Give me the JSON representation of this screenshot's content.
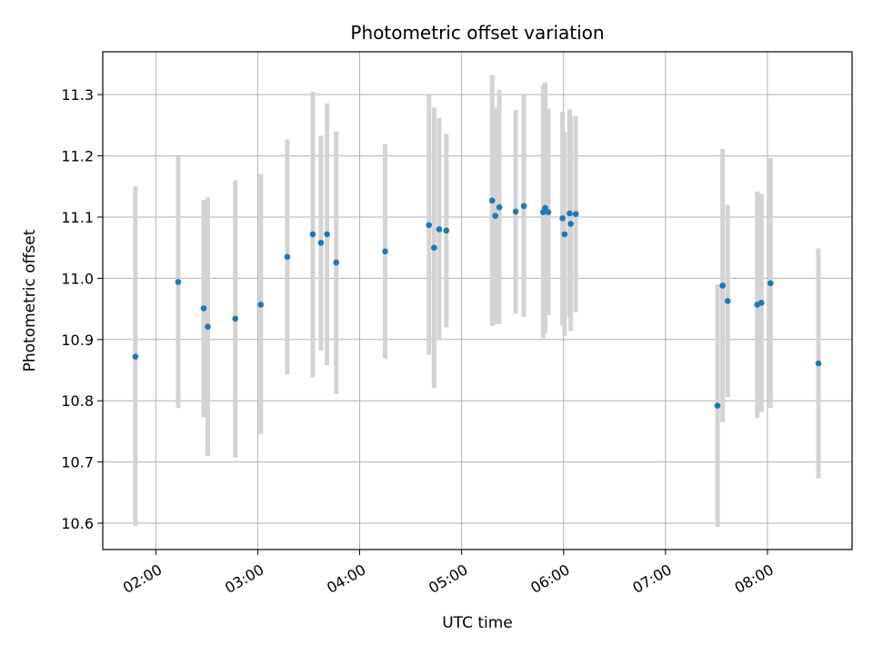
{
  "chart_data": {
    "type": "scatter",
    "title": "Photometric offset variation",
    "xlabel": "UTC time",
    "ylabel": "Photometric offset",
    "grid": true,
    "x_unit": "hours UTC",
    "xlim": [
      1.48,
      8.83
    ],
    "ylim": [
      10.557,
      11.37
    ],
    "x_ticks": [
      {
        "value": 2,
        "label": "02:00"
      },
      {
        "value": 3,
        "label": "03:00"
      },
      {
        "value": 4,
        "label": "04:00"
      },
      {
        "value": 5,
        "label": "05:00"
      },
      {
        "value": 6,
        "label": "06:00"
      },
      {
        "value": 7,
        "label": "07:00"
      },
      {
        "value": 8,
        "label": "08:00"
      }
    ],
    "y_ticks": [
      {
        "value": 10.6,
        "label": "10.6"
      },
      {
        "value": 10.7,
        "label": "10.7"
      },
      {
        "value": 10.8,
        "label": "10.8"
      },
      {
        "value": 10.9,
        "label": "10.9"
      },
      {
        "value": 11.0,
        "label": "11.0"
      },
      {
        "value": 11.1,
        "label": "11.1"
      },
      {
        "value": 11.2,
        "label": "11.2"
      },
      {
        "value": 11.3,
        "label": "11.3"
      }
    ],
    "colors": {
      "point": "#1f77b4",
      "errorbar": "#d3d3d3",
      "grid": "#b0b0b0"
    },
    "points": [
      {
        "x": 1.8,
        "y": 10.872,
        "lo": 10.595,
        "hi": 11.15
      },
      {
        "x": 2.22,
        "y": 10.994,
        "lo": 10.788,
        "hi": 11.2
      },
      {
        "x": 2.47,
        "y": 10.951,
        "lo": 10.773,
        "hi": 11.128
      },
      {
        "x": 2.51,
        "y": 10.921,
        "lo": 10.71,
        "hi": 11.132
      },
      {
        "x": 2.78,
        "y": 10.934,
        "lo": 10.707,
        "hi": 11.16
      },
      {
        "x": 3.03,
        "y": 10.957,
        "lo": 10.745,
        "hi": 11.17
      },
      {
        "x": 3.29,
        "y": 11.035,
        "lo": 10.843,
        "hi": 11.227
      },
      {
        "x": 3.54,
        "y": 11.072,
        "lo": 10.838,
        "hi": 11.305
      },
      {
        "x": 3.62,
        "y": 11.058,
        "lo": 10.882,
        "hi": 11.233
      },
      {
        "x": 3.68,
        "y": 11.072,
        "lo": 10.858,
        "hi": 11.286
      },
      {
        "x": 3.77,
        "y": 11.026,
        "lo": 10.811,
        "hi": 11.24
      },
      {
        "x": 4.25,
        "y": 11.044,
        "lo": 10.869,
        "hi": 11.219
      },
      {
        "x": 4.68,
        "y": 11.087,
        "lo": 10.875,
        "hi": 11.3
      },
      {
        "x": 4.73,
        "y": 11.05,
        "lo": 10.821,
        "hi": 11.279
      },
      {
        "x": 4.78,
        "y": 11.08,
        "lo": 10.899,
        "hi": 11.262
      },
      {
        "x": 4.85,
        "y": 11.078,
        "lo": 10.92,
        "hi": 11.236
      },
      {
        "x": 5.3,
        "y": 11.127,
        "lo": 10.922,
        "hi": 11.332
      },
      {
        "x": 5.33,
        "y": 11.102,
        "lo": 10.925,
        "hi": 11.279
      },
      {
        "x": 5.37,
        "y": 11.116,
        "lo": 10.925,
        "hi": 11.308
      },
      {
        "x": 5.53,
        "y": 11.109,
        "lo": 10.942,
        "hi": 11.275
      },
      {
        "x": 5.61,
        "y": 11.118,
        "lo": 10.937,
        "hi": 11.3
      },
      {
        "x": 5.8,
        "y": 11.108,
        "lo": 10.902,
        "hi": 11.315
      },
      {
        "x": 5.82,
        "y": 11.115,
        "lo": 10.91,
        "hi": 11.32
      },
      {
        "x": 5.85,
        "y": 11.108,
        "lo": 10.94,
        "hi": 11.277
      },
      {
        "x": 5.99,
        "y": 11.098,
        "lo": 10.923,
        "hi": 11.272
      },
      {
        "x": 6.01,
        "y": 11.072,
        "lo": 10.906,
        "hi": 11.239
      },
      {
        "x": 6.06,
        "y": 11.106,
        "lo": 10.936,
        "hi": 11.276
      },
      {
        "x": 6.07,
        "y": 11.089,
        "lo": 10.914,
        "hi": 11.264
      },
      {
        "x": 6.12,
        "y": 11.105,
        "lo": 10.945,
        "hi": 11.265
      },
      {
        "x": 7.51,
        "y": 10.792,
        "lo": 10.594,
        "hi": 10.99
      },
      {
        "x": 7.56,
        "y": 10.988,
        "lo": 10.765,
        "hi": 11.211
      },
      {
        "x": 7.61,
        "y": 10.963,
        "lo": 10.806,
        "hi": 11.12
      },
      {
        "x": 7.9,
        "y": 10.957,
        "lo": 10.772,
        "hi": 11.142
      },
      {
        "x": 7.94,
        "y": 10.96,
        "lo": 10.782,
        "hi": 11.138
      },
      {
        "x": 8.03,
        "y": 10.992,
        "lo": 10.788,
        "hi": 11.197
      },
      {
        "x": 8.5,
        "y": 10.861,
        "lo": 10.673,
        "hi": 11.049
      }
    ]
  }
}
